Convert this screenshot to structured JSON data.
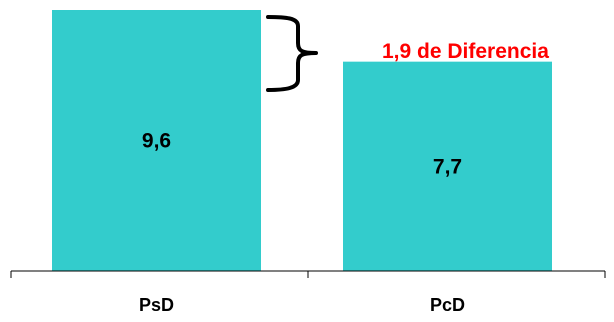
{
  "chart_data": {
    "type": "bar",
    "categories": [
      "PsD",
      "PcD"
    ],
    "values": [
      9.6,
      7.7
    ],
    "value_labels": [
      "9,6",
      "7,7"
    ],
    "title": "",
    "xlabel": "",
    "ylabel": "",
    "ylim": [
      0,
      9.6
    ],
    "grid": false,
    "legend": "none",
    "bar_color": "#33CCCC",
    "annotation": {
      "text": "1,9 de Diferencia",
      "color": "#FF0000",
      "brace_icon": "curly-brace-right"
    }
  }
}
